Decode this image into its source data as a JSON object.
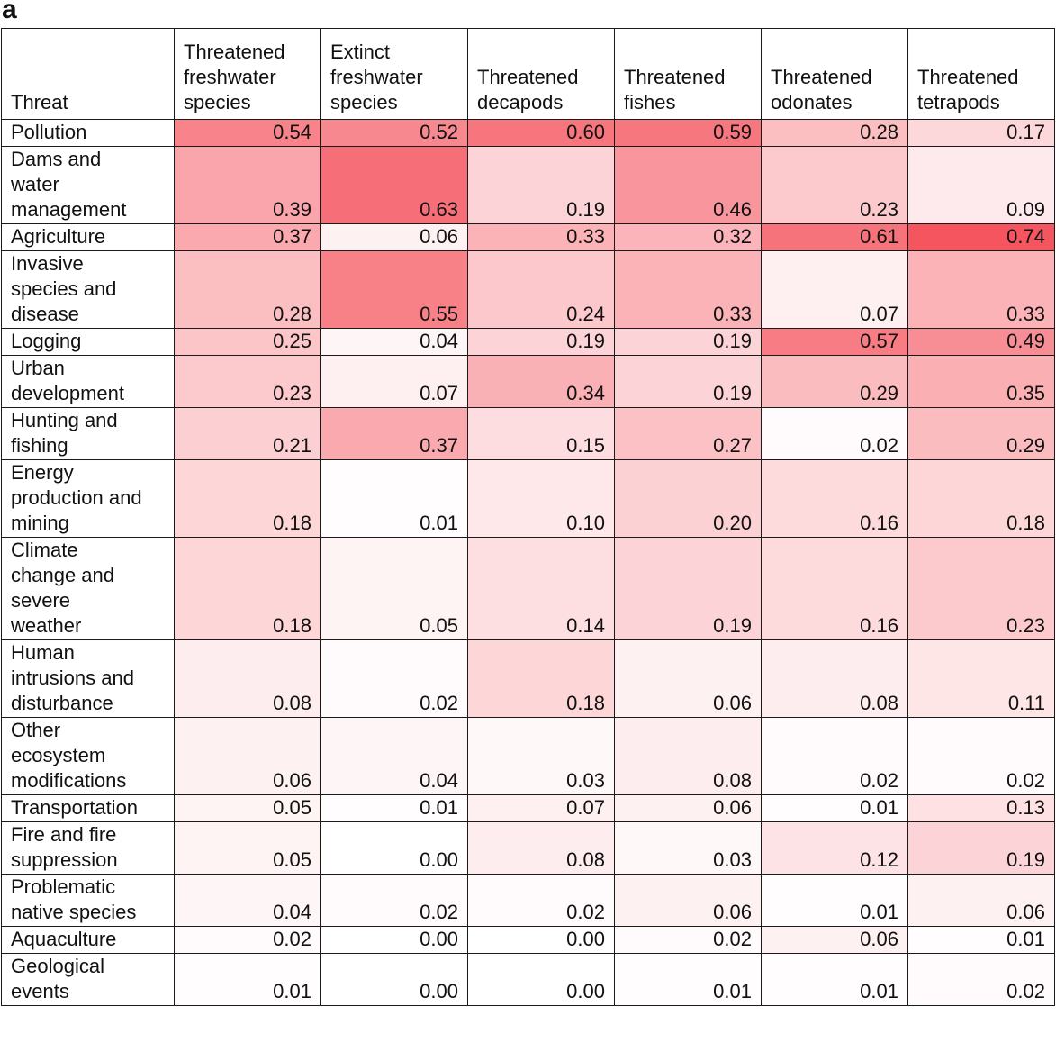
{
  "panel_label": "a",
  "chart_data": {
    "type": "table",
    "columns": [
      "Threat",
      "Threatened freshwater species",
      "Extinct freshwater species",
      "Threatened decapods",
      "Threatened fishes",
      "Threatened odonates",
      "Threatened tetrapods"
    ],
    "header_lines": [
      [
        "Threat"
      ],
      [
        "Threatened",
        "freshwater",
        "species"
      ],
      [
        "Extinct",
        "freshwater",
        "species"
      ],
      [
        "Threatened",
        "decapods"
      ],
      [
        "Threatened",
        "fishes"
      ],
      [
        "Threatened",
        "odonates"
      ],
      [
        "Threatened",
        "tetrapods"
      ]
    ],
    "rows": [
      {
        "threat": "Pollution",
        "threat_lines": [
          "Pollution"
        ],
        "values": [
          "0.54",
          "0.52",
          "0.60",
          "0.59",
          "0.28",
          "0.17"
        ]
      },
      {
        "threat": "Dams and water management",
        "threat_lines": [
          "Dams and",
          "water",
          "management"
        ],
        "values": [
          "0.39",
          "0.63",
          "0.19",
          "0.46",
          "0.23",
          "0.09"
        ]
      },
      {
        "threat": "Agriculture",
        "threat_lines": [
          "Agriculture"
        ],
        "values": [
          "0.37",
          "0.06",
          "0.33",
          "0.32",
          "0.61",
          "0.74"
        ]
      },
      {
        "threat": "Invasive species and disease",
        "threat_lines": [
          "Invasive",
          "species and",
          "disease"
        ],
        "values": [
          "0.28",
          "0.55",
          "0.24",
          "0.33",
          "0.07",
          "0.33"
        ]
      },
      {
        "threat": "Logging",
        "threat_lines": [
          "Logging"
        ],
        "values": [
          "0.25",
          "0.04",
          "0.19",
          "0.19",
          "0.57",
          "0.49"
        ]
      },
      {
        "threat": "Urban development",
        "threat_lines": [
          "Urban",
          "development"
        ],
        "values": [
          "0.23",
          "0.07",
          "0.34",
          "0.19",
          "0.29",
          "0.35"
        ]
      },
      {
        "threat": "Hunting and fishing",
        "threat_lines": [
          "Hunting and",
          "fishing"
        ],
        "values": [
          "0.21",
          "0.37",
          "0.15",
          "0.27",
          "0.02",
          "0.29"
        ]
      },
      {
        "threat": "Energy production and mining",
        "threat_lines": [
          "Energy",
          "production and",
          "mining"
        ],
        "values": [
          "0.18",
          "0.01",
          "0.10",
          "0.20",
          "0.16",
          "0.18"
        ]
      },
      {
        "threat": "Climate change and severe weather",
        "threat_lines": [
          "Climate",
          "change and",
          "severe",
          "weather"
        ],
        "values": [
          "0.18",
          "0.05",
          "0.14",
          "0.19",
          "0.16",
          "0.23"
        ]
      },
      {
        "threat": "Human intrusions and disturbance",
        "threat_lines": [
          "Human",
          "intrusions and",
          "disturbance"
        ],
        "values": [
          "0.08",
          "0.02",
          "0.18",
          "0.06",
          "0.08",
          "0.11"
        ]
      },
      {
        "threat": "Other ecosystem modifications",
        "threat_lines": [
          "Other",
          "ecosystem",
          "modifications"
        ],
        "values": [
          "0.06",
          "0.04",
          "0.03",
          "0.08",
          "0.02",
          "0.02"
        ]
      },
      {
        "threat": "Transportation",
        "threat_lines": [
          "Transportation"
        ],
        "values": [
          "0.05",
          "0.01",
          "0.07",
          "0.06",
          "0.01",
          "0.13"
        ]
      },
      {
        "threat": "Fire and fire suppression",
        "threat_lines": [
          "Fire and fire",
          "suppression"
        ],
        "values": [
          "0.05",
          "0.00",
          "0.08",
          "0.03",
          "0.12",
          "0.19"
        ]
      },
      {
        "threat": "Problematic native species",
        "threat_lines": [
          "Problematic",
          "native species"
        ],
        "values": [
          "0.04",
          "0.02",
          "0.02",
          "0.06",
          "0.01",
          "0.06"
        ]
      },
      {
        "threat": "Aquaculture",
        "threat_lines": [
          "Aquaculture"
        ],
        "values": [
          "0.02",
          "0.00",
          "0.00",
          "0.02",
          "0.06",
          "0.01"
        ]
      },
      {
        "threat": "Geological events",
        "threat_lines": [
          "Geological",
          "events"
        ],
        "values": [
          "0.01",
          "0.00",
          "0.00",
          "0.01",
          "0.01",
          "0.02"
        ]
      }
    ],
    "color_scale": {
      "low": "#ffffff",
      "high": "#f5555f",
      "min": 0,
      "max": 0.74
    }
  }
}
